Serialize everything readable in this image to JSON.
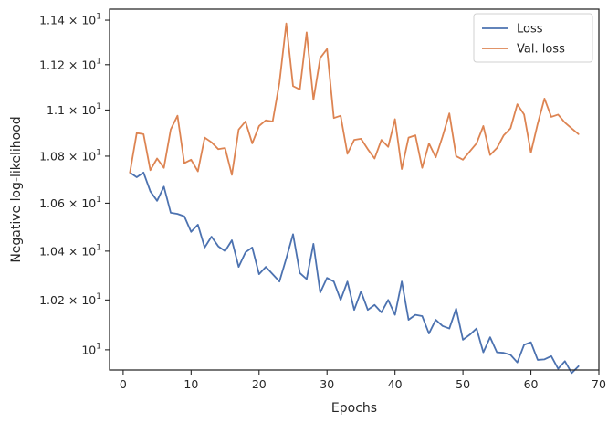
{
  "chart_data": {
    "type": "line",
    "title": "",
    "xlabel": "Epochs",
    "ylabel": "Negative log-likelihood",
    "xlim": [
      -2,
      70
    ],
    "ylim": [
      9.92,
      11.45
    ],
    "yscale": "log",
    "grid": false,
    "legend_position": "top-right",
    "x_ticks": [
      0,
      10,
      20,
      30,
      40,
      50,
      60,
      70
    ],
    "y_ticks": [
      {
        "value": 10.0,
        "mantissa": "",
        "exp": "1"
      },
      {
        "value": 10.2,
        "mantissa": "1.02",
        "exp": "1"
      },
      {
        "value": 10.4,
        "mantissa": "1.04",
        "exp": "1"
      },
      {
        "value": 10.6,
        "mantissa": "1.06",
        "exp": "1"
      },
      {
        "value": 10.8,
        "mantissa": "1.08",
        "exp": "1"
      },
      {
        "value": 11.0,
        "mantissa": "1.1",
        "exp": "1"
      },
      {
        "value": 11.2,
        "mantissa": "1.12",
        "exp": "1"
      },
      {
        "value": 11.4,
        "mantissa": "1.14",
        "exp": "1"
      }
    ],
    "x": [
      1,
      2,
      3,
      4,
      5,
      6,
      7,
      8,
      9,
      10,
      11,
      12,
      13,
      14,
      15,
      16,
      17,
      18,
      19,
      20,
      21,
      22,
      23,
      24,
      25,
      26,
      27,
      28,
      29,
      30,
      31,
      32,
      33,
      34,
      35,
      36,
      37,
      38,
      39,
      40,
      41,
      42,
      43,
      44,
      45,
      46,
      47,
      48,
      49,
      50,
      51,
      52,
      53,
      54,
      55,
      56,
      57,
      58,
      59,
      60,
      61,
      62,
      63,
      64,
      65,
      66,
      67
    ],
    "series": [
      {
        "name": "Loss",
        "color": "#4c72b0",
        "values": [
          10.73,
          10.71,
          10.73,
          10.65,
          10.61,
          10.67,
          10.56,
          10.555,
          10.545,
          10.48,
          10.51,
          10.415,
          10.46,
          10.42,
          10.4,
          10.445,
          10.335,
          10.395,
          10.415,
          10.305,
          10.335,
          10.305,
          10.275,
          10.37,
          10.47,
          10.31,
          10.285,
          10.43,
          10.23,
          10.29,
          10.275,
          10.2,
          10.275,
          10.16,
          10.235,
          10.16,
          10.18,
          10.15,
          10.2,
          10.14,
          10.275,
          10.12,
          10.14,
          10.135,
          10.065,
          10.12,
          10.095,
          10.085,
          10.165,
          10.04,
          10.06,
          10.085,
          9.99,
          10.05,
          9.99,
          9.988,
          9.98,
          9.95,
          10.02,
          10.03,
          9.96,
          9.962,
          9.975,
          9.925,
          9.955,
          9.908,
          9.935
        ]
      },
      {
        "name": "Val. loss",
        "color": "#dd8452",
        "values": [
          10.73,
          10.9,
          10.895,
          10.74,
          10.79,
          10.75,
          10.915,
          10.975,
          10.77,
          10.785,
          10.735,
          10.88,
          10.86,
          10.83,
          10.835,
          10.72,
          10.915,
          10.95,
          10.855,
          10.93,
          10.955,
          10.95,
          11.12,
          11.385,
          11.105,
          11.09,
          11.345,
          11.045,
          11.23,
          11.27,
          10.965,
          10.975,
          10.81,
          10.87,
          10.875,
          10.83,
          10.79,
          10.87,
          10.84,
          10.96,
          10.745,
          10.88,
          10.89,
          10.75,
          10.855,
          10.795,
          10.885,
          10.985,
          10.8,
          10.785,
          10.82,
          10.855,
          10.93,
          10.805,
          10.835,
          10.89,
          10.92,
          11.025,
          10.98,
          10.815,
          10.94,
          11.05,
          10.97,
          10.98,
          10.945,
          10.92,
          10.895
        ]
      }
    ]
  }
}
